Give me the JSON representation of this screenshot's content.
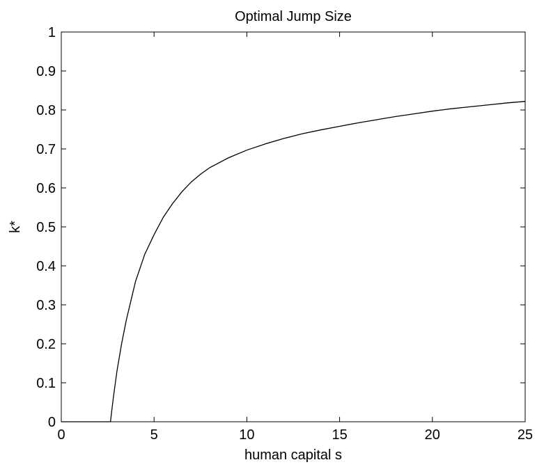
{
  "chart_data": {
    "type": "line",
    "title": "Optimal Jump Size",
    "xlabel": "human capital s",
    "ylabel": "k*",
    "xlim": [
      0,
      25
    ],
    "ylim": [
      0,
      1
    ],
    "xticks": [
      0,
      5,
      10,
      15,
      20,
      25
    ],
    "yticks": [
      0,
      0.1,
      0.2,
      0.3,
      0.4,
      0.5,
      0.6,
      0.7,
      0.8,
      0.9,
      1
    ],
    "xtick_labels": [
      "0",
      "5",
      "10",
      "15",
      "20",
      "25"
    ],
    "ytick_labels": [
      "0",
      "0.1",
      "0.2",
      "0.3",
      "0.4",
      "0.5",
      "0.6",
      "0.7",
      "0.8",
      "0.9",
      "1"
    ],
    "grid": false,
    "line_color": "#000000",
    "series": [
      {
        "x": [
          0,
          1,
          2,
          2.65,
          2.8,
          3.0,
          3.25,
          3.5,
          3.75,
          4.0,
          4.5,
          5.0,
          5.5,
          6.0,
          6.5,
          7.0,
          7.5,
          8.0,
          9.0,
          10.0,
          11.0,
          12.0,
          13.0,
          14.0,
          15.0,
          16.0,
          17.0,
          18.0,
          19.0,
          20.0,
          21.0,
          22.0,
          23.0,
          24.0,
          25.0
        ],
        "y": [
          0,
          0,
          0,
          0,
          0.06,
          0.13,
          0.2,
          0.26,
          0.31,
          0.36,
          0.43,
          0.48,
          0.525,
          0.56,
          0.59,
          0.615,
          0.635,
          0.652,
          0.677,
          0.697,
          0.713,
          0.727,
          0.739,
          0.749,
          0.758,
          0.767,
          0.775,
          0.783,
          0.79,
          0.797,
          0.803,
          0.808,
          0.813,
          0.818,
          0.822
        ]
      }
    ]
  }
}
